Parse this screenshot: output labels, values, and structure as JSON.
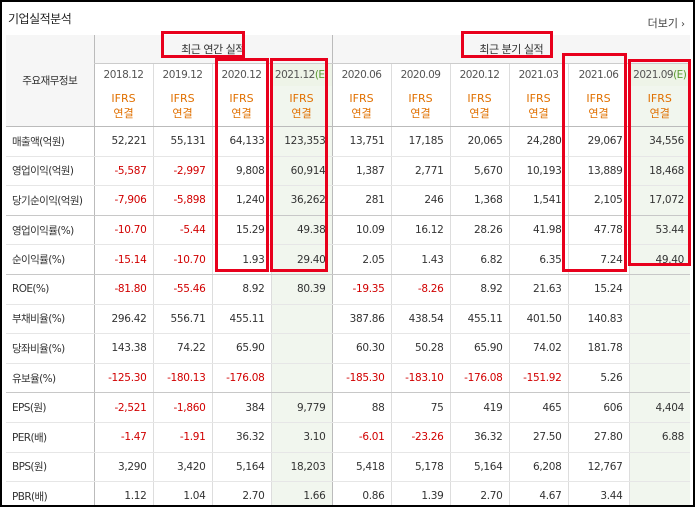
{
  "header": {
    "title": "기업실적분석",
    "more_label": "더보기",
    "more_icon": "chevron-right-icon"
  },
  "table": {
    "row_header_title": "주요재무정보",
    "group_annual": "최근 연간 실적",
    "group_quarter": "최근 분기 실적",
    "annual_periods": [
      "2018.12",
      "2019.12",
      "2020.12",
      "2021.12"
    ],
    "quarter_periods": [
      "2020.06",
      "2020.09",
      "2020.12",
      "2021.03",
      "2021.06",
      "2021.09"
    ],
    "estimate_mark": "(E)",
    "ifrs_line1": "IFRS",
    "ifrs_line2": "연결",
    "rows": [
      {
        "label": "매출액(억원)",
        "values": [
          "52,221",
          "55,131",
          "64,133",
          "123,353",
          "13,751",
          "17,185",
          "20,065",
          "24,280",
          "29,067",
          "34,556"
        ]
      },
      {
        "label": "영업이익(억원)",
        "values": [
          "-5,587",
          "-2,997",
          "9,808",
          "60,914",
          "1,387",
          "2,771",
          "5,670",
          "10,193",
          "13,889",
          "18,468"
        ]
      },
      {
        "label": "당기순이익(억원)",
        "values": [
          "-7,906",
          "-5,898",
          "1,240",
          "36,262",
          "281",
          "246",
          "1,368",
          "1,541",
          "2,105",
          "17,072"
        ]
      },
      {
        "label": "영업이익률(%)",
        "values": [
          "-10.70",
          "-5.44",
          "15.29",
          "49.38",
          "10.09",
          "16.12",
          "28.26",
          "41.98",
          "47.78",
          "53.44"
        ]
      },
      {
        "label": "순이익률(%)",
        "values": [
          "-15.14",
          "-10.70",
          "1.93",
          "29.40",
          "2.05",
          "1.43",
          "6.82",
          "6.35",
          "7.24",
          "49.40"
        ]
      },
      {
        "label": "ROE(%)",
        "values": [
          "-81.80",
          "-55.46",
          "8.92",
          "80.39",
          "-19.35",
          "-8.26",
          "8.92",
          "21.63",
          "15.24",
          ""
        ]
      },
      {
        "label": "부채비율(%)",
        "values": [
          "296.42",
          "556.71",
          "455.11",
          "",
          "387.86",
          "438.54",
          "455.11",
          "401.50",
          "140.83",
          ""
        ]
      },
      {
        "label": "당좌비율(%)",
        "values": [
          "143.38",
          "74.22",
          "65.90",
          "",
          "60.30",
          "50.28",
          "65.90",
          "74.02",
          "181.78",
          ""
        ]
      },
      {
        "label": "유보율(%)",
        "values": [
          "-125.30",
          "-180.13",
          "-176.08",
          "",
          "-185.30",
          "-183.10",
          "-176.08",
          "-151.92",
          "5.26",
          ""
        ]
      },
      {
        "label": "EPS(원)",
        "values": [
          "-2,521",
          "-1,860",
          "384",
          "9,779",
          "88",
          "75",
          "419",
          "465",
          "606",
          "4,404"
        ]
      },
      {
        "label": "PER(배)",
        "values": [
          "-1.47",
          "-1.91",
          "36.32",
          "3.10",
          "-6.01",
          "-23.26",
          "36.32",
          "27.50",
          "27.80",
          "6.88"
        ]
      },
      {
        "label": "BPS(원)",
        "values": [
          "3,290",
          "3,420",
          "5,164",
          "18,203",
          "5,418",
          "5,178",
          "5,164",
          "6,208",
          "12,767",
          ""
        ]
      },
      {
        "label": "PBR(배)",
        "values": [
          "1.12",
          "1.04",
          "2.70",
          "1.66",
          "0.86",
          "1.39",
          "2.70",
          "4.67",
          "3.44",
          ""
        ]
      }
    ]
  },
  "colors": {
    "highlight": "#e8001c",
    "negative": "#d10000",
    "ifrs": "#e07000",
    "estimate_bg": "#f1f6ee"
  }
}
